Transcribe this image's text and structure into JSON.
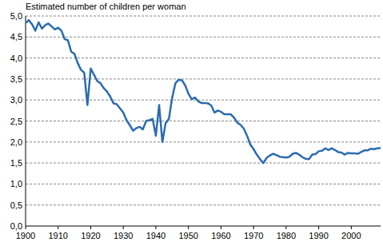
{
  "chart_data": {
    "type": "line",
    "title": "Estimated number of children per woman",
    "x": [
      1900,
      1901,
      1902,
      1903,
      1904,
      1905,
      1906,
      1907,
      1908,
      1909,
      1910,
      1911,
      1912,
      1913,
      1914,
      1915,
      1916,
      1917,
      1918,
      1919,
      1920,
      1921,
      1922,
      1923,
      1924,
      1925,
      1926,
      1927,
      1928,
      1929,
      1930,
      1931,
      1932,
      1933,
      1934,
      1935,
      1936,
      1937,
      1938,
      1939,
      1940,
      1941,
      1942,
      1943,
      1944,
      1945,
      1946,
      1947,
      1948,
      1949,
      1950,
      1951,
      1952,
      1953,
      1954,
      1955,
      1956,
      1957,
      1958,
      1959,
      1960,
      1961,
      1962,
      1963,
      1964,
      1965,
      1966,
      1967,
      1968,
      1969,
      1970,
      1971,
      1972,
      1973,
      1974,
      1975,
      1976,
      1977,
      1978,
      1979,
      1980,
      1981,
      1982,
      1983,
      1984,
      1985,
      1986,
      1987,
      1988,
      1989,
      1990,
      1991,
      1992,
      1993,
      1994,
      1995,
      1996,
      1997,
      1998,
      1999,
      2000,
      2001,
      2002,
      2003,
      2004,
      2005,
      2006,
      2007,
      2008,
      2009
    ],
    "series": [
      {
        "name": "Estimated number of children per woman",
        "color": "#2b6cb0",
        "values": [
          4.83,
          4.9,
          4.8,
          4.65,
          4.85,
          4.7,
          4.78,
          4.82,
          4.75,
          4.68,
          4.72,
          4.65,
          4.45,
          4.42,
          4.15,
          4.1,
          3.88,
          3.72,
          3.65,
          2.88,
          3.75,
          3.6,
          3.45,
          3.4,
          3.28,
          3.2,
          3.08,
          2.92,
          2.9,
          2.8,
          2.7,
          2.52,
          2.4,
          2.27,
          2.33,
          2.36,
          2.3,
          2.5,
          2.52,
          2.55,
          2.15,
          2.88,
          2.0,
          2.45,
          2.55,
          3.05,
          3.4,
          3.48,
          3.47,
          3.35,
          3.15,
          3.02,
          3.06,
          2.97,
          2.93,
          2.93,
          2.92,
          2.87,
          2.7,
          2.75,
          2.72,
          2.66,
          2.66,
          2.66,
          2.58,
          2.46,
          2.41,
          2.32,
          2.15,
          1.94,
          1.83,
          1.7,
          1.59,
          1.5,
          1.62,
          1.68,
          1.72,
          1.69,
          1.65,
          1.64,
          1.63,
          1.65,
          1.72,
          1.74,
          1.7,
          1.64,
          1.6,
          1.59,
          1.7,
          1.71,
          1.78,
          1.79,
          1.85,
          1.81,
          1.85,
          1.81,
          1.76,
          1.75,
          1.7,
          1.74,
          1.73,
          1.73,
          1.72,
          1.76,
          1.8,
          1.8,
          1.84,
          1.83,
          1.85,
          1.86
        ]
      }
    ],
    "xlim": [
      1900,
      2009
    ],
    "xticks": [
      1900,
      1910,
      1920,
      1930,
      1940,
      1950,
      1960,
      1970,
      1980,
      1990,
      2000
    ],
    "ylim": [
      0,
      5
    ],
    "yticks": [
      {
        "value": 0,
        "label": "0,0"
      },
      {
        "value": 0.5,
        "label": "0,5"
      },
      {
        "value": 1,
        "label": "1,0"
      },
      {
        "value": 1.5,
        "label": "1,5"
      },
      {
        "value": 2,
        "label": "2,0"
      },
      {
        "value": 2.5,
        "label": "2,5"
      },
      {
        "value": 3,
        "label": "3,0"
      },
      {
        "value": 3.5,
        "label": "3,5"
      },
      {
        "value": 4,
        "label": "4,0"
      },
      {
        "value": 4.5,
        "label": "4,5"
      },
      {
        "value": 5,
        "label": "5,0"
      }
    ],
    "grid": true
  }
}
